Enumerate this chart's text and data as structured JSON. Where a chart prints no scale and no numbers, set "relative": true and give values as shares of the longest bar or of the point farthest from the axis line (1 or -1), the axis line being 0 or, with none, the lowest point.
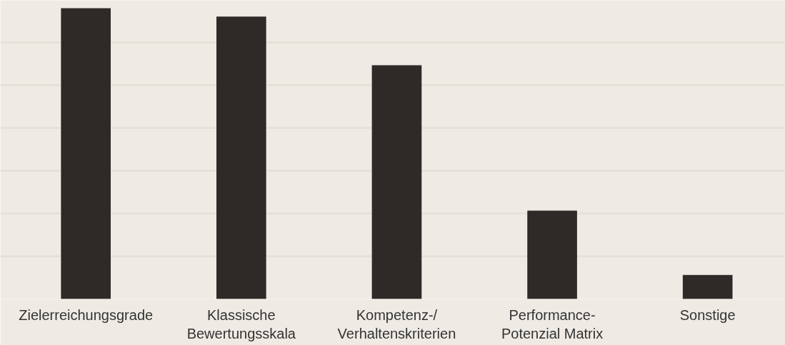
{
  "chart_data": {
    "type": "bar",
    "relative": true,
    "categories": [
      "Zielerreichungsgrade",
      "Klassische\nBewertungsskala",
      "Kompetenz-/\nVerhaltenskriterien",
      "Performance-\nPotenzial Matrix",
      "Sonstige"
    ],
    "values": [
      1,
      0.971,
      0.804,
      0.304,
      0.083
    ],
    "color": "#2f2a28",
    "grid": "y"
  }
}
